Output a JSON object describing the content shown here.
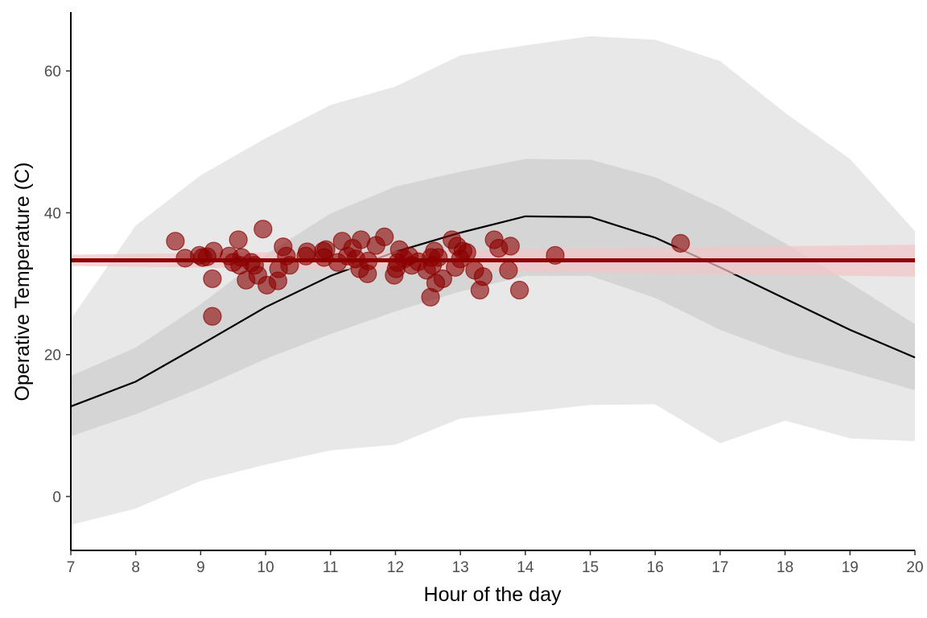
{
  "chart_data": {
    "type": "scatter",
    "x_label": "Hour of the day",
    "y_label": "Operative Temperature (C)",
    "xlim": [
      7,
      20
    ],
    "ylim": [
      -7.6,
      68.3
    ],
    "xticks": [
      7,
      8,
      9,
      10,
      11,
      12,
      13,
      14,
      15,
      16,
      17,
      18,
      19,
      20
    ],
    "yticks": [
      0,
      20,
      40,
      60
    ],
    "bands": [
      {
        "x": [
          7,
          8,
          9,
          10,
          11,
          12,
          13,
          14,
          15,
          16,
          17,
          18,
          19,
          20
        ],
        "lower": [
          -4.0,
          -1.7,
          2.2,
          4.5,
          6.5,
          7.3,
          11.0,
          11.9,
          12.9,
          13.0,
          7.5,
          10.7,
          8.2,
          7.8
        ],
        "upper": [
          25.0,
          38.2,
          45.3,
          50.5,
          55.2,
          57.8,
          62.2,
          63.6,
          64.9,
          64.4,
          61.4,
          54.1,
          47.6,
          37.4
        ],
        "color": "#e8e8e8"
      },
      {
        "x": [
          7,
          8,
          9,
          10,
          11,
          12,
          13,
          14,
          15,
          16,
          17,
          18,
          19,
          20
        ],
        "lower": [
          8.5,
          11.6,
          15.3,
          19.4,
          22.9,
          26.1,
          28.9,
          31.1,
          31.1,
          28.0,
          23.5,
          20.1,
          17.6,
          15.0
        ],
        "upper": [
          17.0,
          21.0,
          27.1,
          34.1,
          39.9,
          43.7,
          45.8,
          47.6,
          47.5,
          45.0,
          40.8,
          35.7,
          30.1,
          24.3
        ],
        "color": "#d5d5d5"
      }
    ],
    "line": {
      "x": [
        7,
        8,
        9,
        10,
        11,
        12,
        13,
        14,
        15,
        16,
        17,
        18,
        19,
        20
      ],
      "values": [
        12.7,
        16.2,
        21.4,
        26.7,
        31.1,
        34.5,
        37.2,
        39.5,
        39.4,
        36.5,
        32.3,
        27.9,
        23.5,
        19.6
      ],
      "color": "#000000"
    },
    "fit": {
      "x": [
        7,
        20
      ],
      "values": [
        33.3,
        33.3
      ],
      "lower": [
        32.5,
        31.0
      ],
      "upper": [
        34.1,
        35.5
      ],
      "color": "#8b0000",
      "band_color": "#f2c4c4"
    },
    "color": "#8b0000",
    "x": [
      8.61,
      8.76,
      8.98,
      9.03,
      9.1,
      9.18,
      9.18,
      9.2,
      9.44,
      9.5,
      9.58,
      9.6,
      9.63,
      9.7,
      9.78,
      9.83,
      9.88,
      9.96,
      10.02,
      10.19,
      10.2,
      10.27,
      10.32,
      10.37,
      10.62,
      10.64,
      10.89,
      10.9,
      10.93,
      11.11,
      11.18,
      11.26,
      11.34,
      11.39,
      11.45,
      11.47,
      11.57,
      11.58,
      11.7,
      11.83,
      11.98,
      12.01,
      12.03,
      12.06,
      12.13,
      12.21,
      12.25,
      12.35,
      12.48,
      12.54,
      12.55,
      12.57,
      12.6,
      12.62,
      12.66,
      12.73,
      12.87,
      12.95,
      12.92,
      13.0,
      13.04,
      13.1,
      13.22,
      13.3,
      13.35,
      13.52,
      13.59,
      13.74,
      13.77,
      13.91,
      14.46,
      16.39
    ],
    "values": [
      36.0,
      33.6,
      34.0,
      33.7,
      33.8,
      25.4,
      30.7,
      34.6,
      33.9,
      33.0,
      36.2,
      32.6,
      33.7,
      30.5,
      33.0,
      32.6,
      31.2,
      37.7,
      29.8,
      30.4,
      32.1,
      35.2,
      33.9,
      32.6,
      33.9,
      34.5,
      34.6,
      33.7,
      34.8,
      33.0,
      36.0,
      33.9,
      35.0,
      33.5,
      32.1,
      36.2,
      31.4,
      33.2,
      35.4,
      36.6,
      31.2,
      32.1,
      33.0,
      34.8,
      33.5,
      33.9,
      32.6,
      33.1,
      31.9,
      28.1,
      33.7,
      32.6,
      34.6,
      30.1,
      33.7,
      30.7,
      36.2,
      35.3,
      32.3,
      33.5,
      34.6,
      34.4,
      31.9,
      29.1,
      31.0,
      36.2,
      35.0,
      31.9,
      35.3,
      29.1,
      34.0,
      35.7
    ]
  }
}
